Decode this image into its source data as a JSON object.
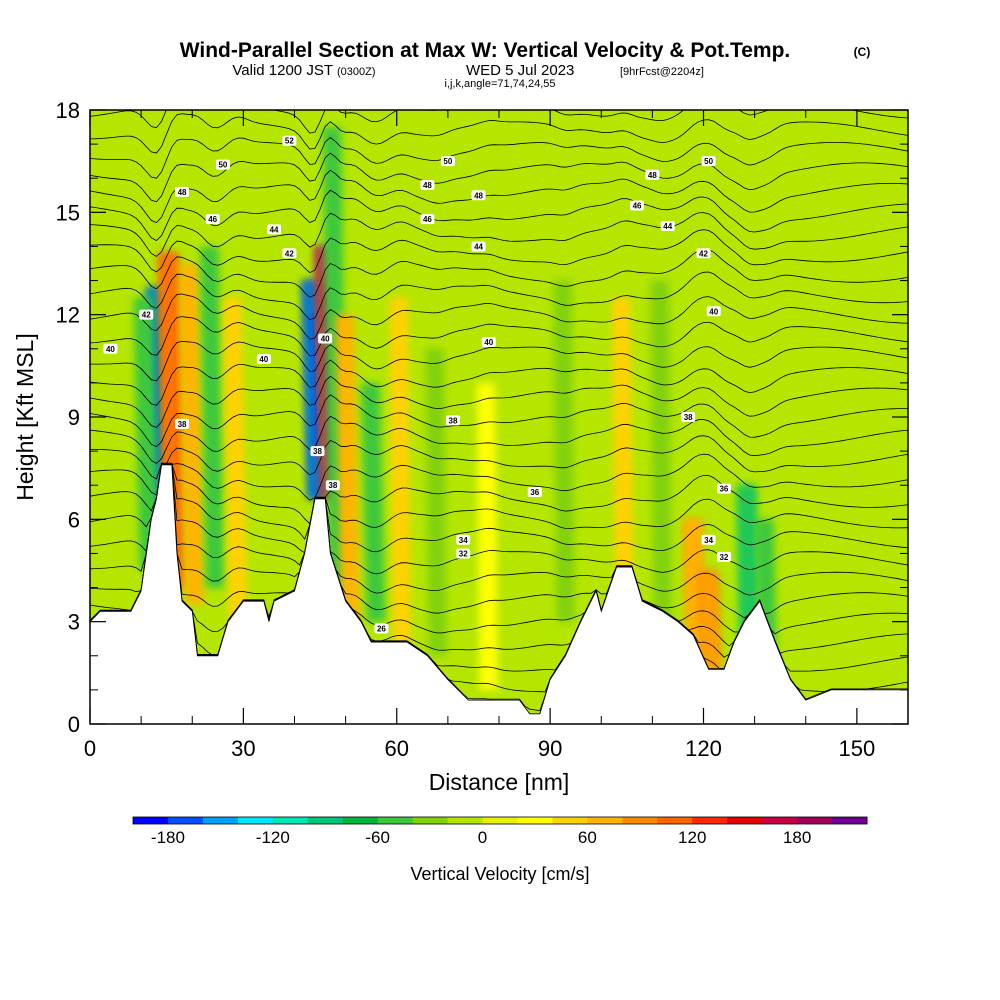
{
  "header": {
    "title": "Wind-Parallel Section at Max W: Vertical Velocity & Pot.Temp.",
    "copyright": "(C)",
    "valid_prefix": "Valid 1200 JST",
    "valid_utc": "(0300Z)",
    "valid_date": "WED 5 Jul 2023",
    "forecast": "[9hrFcst@2204z]",
    "indices": "i,j,k,angle=71,74,24,55"
  },
  "chart_data": {
    "type": "heatmap",
    "xlabel": "Distance [nm]",
    "ylabel": "Height [Kft MSL]",
    "xlim": [
      0,
      160
    ],
    "ylim": [
      0,
      18
    ],
    "x_ticks": [
      "0",
      "30",
      "60",
      "90",
      "120",
      "150"
    ],
    "y_ticks": [
      "0",
      "3",
      "6",
      "9",
      "12",
      "15",
      "18"
    ],
    "colorbar": {
      "label": "Vertical Velocity [cm/s]",
      "range": [
        -200,
        220
      ],
      "step": 20,
      "tick_labels": [
        "-180",
        "-120",
        "-60",
        "0",
        "60",
        "120",
        "180"
      ],
      "colors": [
        "#0000ff",
        "#0050ff",
        "#00a0ff",
        "#00e6ff",
        "#00e6b4",
        "#00c878",
        "#00b43c",
        "#3cc83c",
        "#82d20a",
        "#b4e600",
        "#e6f000",
        "#ffff00",
        "#ffd200",
        "#ffb400",
        "#ff8c00",
        "#ff6400",
        "#ff2800",
        "#e60000",
        "#c80046",
        "#a0005a",
        "#6e0096"
      ]
    },
    "terrain_profile": [
      [
        0,
        3.0
      ],
      [
        2,
        3.3
      ],
      [
        8,
        3.3
      ],
      [
        10,
        3.9
      ],
      [
        12,
        6.0
      ],
      [
        13,
        6.6
      ],
      [
        14,
        7.6
      ],
      [
        16,
        7.6
      ],
      [
        17,
        5.0
      ],
      [
        18,
        3.6
      ],
      [
        20,
        3.3
      ],
      [
        21,
        2.0
      ],
      [
        25,
        2.0
      ],
      [
        27,
        3.0
      ],
      [
        30,
        3.6
      ],
      [
        34,
        3.6
      ],
      [
        35,
        3.0
      ],
      [
        36,
        3.6
      ],
      [
        40,
        3.9
      ],
      [
        42,
        5.0
      ],
      [
        44,
        6.6
      ],
      [
        46,
        6.6
      ],
      [
        47,
        5.0
      ],
      [
        50,
        3.6
      ],
      [
        53,
        3.0
      ],
      [
        55,
        2.4
      ],
      [
        58,
        2.4
      ],
      [
        62,
        2.4
      ],
      [
        66,
        2.0
      ],
      [
        70,
        1.3
      ],
      [
        74,
        0.7
      ],
      [
        80,
        0.7
      ],
      [
        84,
        0.7
      ],
      [
        86,
        0.3
      ],
      [
        88,
        0.3
      ],
      [
        90,
        1.3
      ],
      [
        93,
        2.0
      ],
      [
        96,
        3.0
      ],
      [
        99,
        3.9
      ],
      [
        100,
        3.3
      ],
      [
        103,
        4.6
      ],
      [
        106,
        4.6
      ],
      [
        108,
        3.6
      ],
      [
        112,
        3.3
      ],
      [
        115,
        3.0
      ],
      [
        118,
        2.6
      ],
      [
        121,
        1.6
      ],
      [
        124,
        1.6
      ],
      [
        126,
        2.4
      ],
      [
        128,
        3.0
      ],
      [
        131,
        3.6
      ],
      [
        134,
        2.4
      ],
      [
        137,
        1.3
      ],
      [
        140,
        0.7
      ],
      [
        145,
        1.0
      ],
      [
        150,
        1.0
      ],
      [
        155,
        1.0
      ],
      [
        158,
        1.0
      ],
      [
        160,
        1.0
      ]
    ],
    "updrafts_downdrafts": [
      {
        "x": 13.5,
        "y0": 5.0,
        "y1": 12.8,
        "w": -170
      },
      {
        "x": 16.5,
        "y0": 4.0,
        "y1": 13.8,
        "w": 120
      },
      {
        "x": 11.5,
        "y0": 4.5,
        "y1": 12.5,
        "w": -60
      },
      {
        "x": 20.5,
        "y0": 3.5,
        "y1": 13.5,
        "w": 70
      },
      {
        "x": 24.5,
        "y0": 4.0,
        "y1": 14.0,
        "w": -55
      },
      {
        "x": 29.0,
        "y0": 3.0,
        "y1": 12.5,
        "w": 45
      },
      {
        "x": 44.0,
        "y0": 6.6,
        "y1": 13.0,
        "w": -200
      },
      {
        "x": 46.5,
        "y0": 6.6,
        "y1": 14.0,
        "w": 200
      },
      {
        "x": 48.5,
        "y0": 4.0,
        "y1": 17.5,
        "w": -50
      },
      {
        "x": 51.0,
        "y0": 3.0,
        "y1": 12.0,
        "w": 60
      },
      {
        "x": 56.0,
        "y0": 3.0,
        "y1": 10.0,
        "w": -45
      },
      {
        "x": 61.0,
        "y0": 2.0,
        "y1": 12.5,
        "w": 40
      },
      {
        "x": 68.0,
        "y0": 2.0,
        "y1": 11.0,
        "w": -30
      },
      {
        "x": 78.0,
        "y0": 1.0,
        "y1": 10.0,
        "w": 25
      },
      {
        "x": 93.0,
        "y0": 3.0,
        "y1": 13.0,
        "w": -35
      },
      {
        "x": 104.5,
        "y0": 4.0,
        "y1": 12.5,
        "w": 45
      },
      {
        "x": 112.0,
        "y0": 3.0,
        "y1": 13.0,
        "w": -30
      },
      {
        "x": 118.5,
        "y0": 2.0,
        "y1": 6.0,
        "w": 90
      },
      {
        "x": 121.5,
        "y0": 1.6,
        "y1": 4.5,
        "w": 100
      },
      {
        "x": 129.0,
        "y0": 2.5,
        "y1": 7.0,
        "w": -90
      },
      {
        "x": 132.5,
        "y0": 2.0,
        "y1": 6.0,
        "w": -60
      }
    ],
    "theta_labels": [
      {
        "x": 39,
        "y": 17.1,
        "text": "52"
      },
      {
        "x": 26,
        "y": 16.4,
        "text": "50"
      },
      {
        "x": 70,
        "y": 16.5,
        "text": "50"
      },
      {
        "x": 121,
        "y": 16.5,
        "text": "50"
      },
      {
        "x": 18,
        "y": 15.6,
        "text": "48"
      },
      {
        "x": 66,
        "y": 15.8,
        "text": "48"
      },
      {
        "x": 76,
        "y": 15.5,
        "text": "48"
      },
      {
        "x": 110,
        "y": 16.1,
        "text": "48"
      },
      {
        "x": 24,
        "y": 14.8,
        "text": "46"
      },
      {
        "x": 66,
        "y": 14.8,
        "text": "46"
      },
      {
        "x": 107,
        "y": 15.2,
        "text": "46"
      },
      {
        "x": 36,
        "y": 14.5,
        "text": "44"
      },
      {
        "x": 76,
        "y": 14.0,
        "text": "44"
      },
      {
        "x": 113,
        "y": 14.6,
        "text": "44"
      },
      {
        "x": 39,
        "y": 13.8,
        "text": "42"
      },
      {
        "x": 11,
        "y": 12.0,
        "text": "42"
      },
      {
        "x": 120,
        "y": 13.8,
        "text": "42"
      },
      {
        "x": 4,
        "y": 11.0,
        "text": "40"
      },
      {
        "x": 34,
        "y": 10.7,
        "text": "40"
      },
      {
        "x": 46,
        "y": 11.3,
        "text": "40"
      },
      {
        "x": 78,
        "y": 11.2,
        "text": "40"
      },
      {
        "x": 122,
        "y": 12.1,
        "text": "40"
      },
      {
        "x": 18,
        "y": 8.8,
        "text": "38"
      },
      {
        "x": 71,
        "y": 8.9,
        "text": "38"
      },
      {
        "x": 117,
        "y": 9.0,
        "text": "38"
      },
      {
        "x": 44.5,
        "y": 8.0,
        "text": "38"
      },
      {
        "x": 47.5,
        "y": 7.0,
        "text": "38"
      },
      {
        "x": 87,
        "y": 6.8,
        "text": "36"
      },
      {
        "x": 124,
        "y": 6.9,
        "text": "36"
      },
      {
        "x": 73,
        "y": 5.4,
        "text": "34"
      },
      {
        "x": 121,
        "y": 5.4,
        "text": "34"
      },
      {
        "x": 73,
        "y": 5.0,
        "text": "32"
      },
      {
        "x": 124,
        "y": 4.9,
        "text": "32"
      },
      {
        "x": 57,
        "y": 2.8,
        "text": "26"
      }
    ]
  }
}
